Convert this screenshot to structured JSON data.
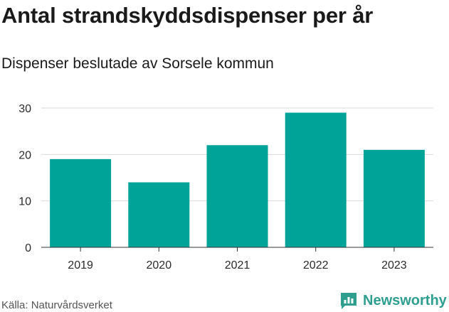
{
  "chart_data": {
    "type": "bar",
    "title": "Antal strandskyddsdispenser per år",
    "subtitle": "Dispenser beslutade av Sorsele kommun",
    "categories": [
      "2019",
      "2020",
      "2021",
      "2022",
      "2023"
    ],
    "values": [
      19,
      14,
      22,
      29,
      21
    ],
    "yticks": [
      0,
      10,
      20,
      30
    ],
    "ylim": [
      0,
      30
    ],
    "xlabel": "",
    "ylabel": "",
    "grid": true,
    "bar_color": "#00a398",
    "gridline_color": "#dcdcdc",
    "axis_color": "#333333"
  },
  "footer": {
    "source": "Källa: Naturvårdsverket",
    "brand_name": "Newsworthy",
    "brand_icon": "newsworthy-logo-icon",
    "brand_color": "#2e9e8f"
  }
}
